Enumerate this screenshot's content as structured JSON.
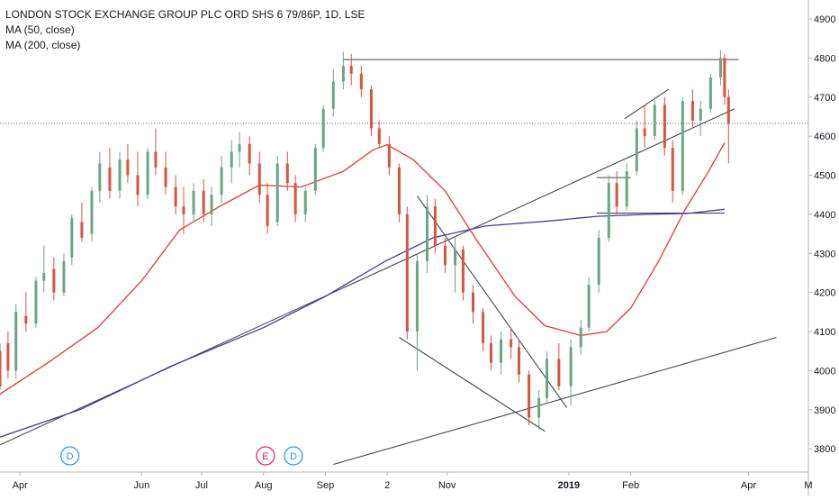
{
  "legend": {
    "title": "LONDON STOCK EXCHANGE GROUP PLC ORD SHS 6 79/86P, 1D, LSE",
    "ma50": "MA (50, close)",
    "ma200": "MA (200, close)"
  },
  "chart_data": {
    "type": "candlestick",
    "y_ticks": [
      3800,
      3900,
      4000,
      4100,
      4200,
      4300,
      4400,
      4500,
      4600,
      4700,
      4800,
      4900
    ],
    "x_ticks": [
      "Apr",
      "Jun",
      "Jul",
      "Aug",
      "Sep",
      "2",
      "Nov",
      "2019",
      "Feb",
      "Apr",
      "M"
    ],
    "x_range": [
      "2018-03-22",
      "2019-05-01"
    ],
    "y_range": [
      3745,
      4930
    ],
    "last_price": 4633,
    "colors": {
      "up": "#6ba583",
      "down": "#d75442",
      "ma50": "#e53935",
      "ma200": "#3f3fa0",
      "trend": "#434651"
    },
    "event_markers": [
      {
        "label": "D",
        "date": "2018-04-26",
        "color": "#2196f3"
      },
      {
        "label": "E",
        "date": "2018-08-02",
        "color": "#e91e63"
      },
      {
        "label": "D",
        "date": "2018-08-16",
        "color": "#2196f3"
      }
    ],
    "ma50_series": [
      [
        "2018-03-22",
        3940
      ],
      [
        "2018-04-15",
        4020
      ],
      [
        "2018-05-10",
        4110
      ],
      [
        "2018-06-01",
        4230
      ],
      [
        "2018-06-20",
        4360
      ],
      [
        "2018-07-10",
        4420
      ],
      [
        "2018-07-30",
        4475
      ],
      [
        "2018-08-20",
        4470
      ],
      [
        "2018-09-10",
        4510
      ],
      [
        "2018-09-25",
        4565
      ],
      [
        "2018-10-02",
        4578
      ],
      [
        "2018-10-15",
        4540
      ],
      [
        "2018-10-31",
        4460
      ],
      [
        "2018-11-15",
        4340
      ],
      [
        "2018-12-05",
        4190
      ],
      [
        "2018-12-20",
        4115
      ],
      [
        "2019-01-07",
        4090
      ],
      [
        "2019-01-20",
        4100
      ],
      [
        "2019-02-01",
        4160
      ],
      [
        "2019-02-15",
        4280
      ],
      [
        "2019-02-28",
        4410
      ],
      [
        "2019-03-12",
        4510
      ],
      [
        "2019-03-20",
        4583
      ]
    ],
    "ma200_series": [
      [
        "2018-03-22",
        3830
      ],
      [
        "2018-05-01",
        3900
      ],
      [
        "2018-06-15",
        4010
      ],
      [
        "2018-08-01",
        4110
      ],
      [
        "2018-09-01",
        4190
      ],
      [
        "2018-10-01",
        4280
      ],
      [
        "2018-10-25",
        4340
      ],
      [
        "2018-11-20",
        4370
      ],
      [
        "2018-12-20",
        4382
      ],
      [
        "2019-01-15",
        4395
      ],
      [
        "2019-02-10",
        4400
      ],
      [
        "2019-03-01",
        4402
      ],
      [
        "2019-03-20",
        4413
      ]
    ],
    "trend_lines": [
      {
        "name": "lower-support",
        "from": [
          "2018-09-05",
          3760
        ],
        "to": [
          "2019-04-15",
          4085
        ]
      },
      {
        "name": "rising-long",
        "from": [
          "2018-03-22",
          3810
        ],
        "to": [
          "2019-03-25",
          4670
        ]
      },
      {
        "name": "resistance-top",
        "from": [
          "2018-09-10",
          4796
        ],
        "to": [
          "2019-03-27",
          4796
        ]
      },
      {
        "name": "wedge-upper",
        "from": [
          "2018-10-17",
          4447
        ],
        "to": [
          "2018-12-31",
          3905
        ]
      },
      {
        "name": "wedge-lower",
        "from": [
          "2018-10-08",
          4085
        ],
        "to": [
          "2018-12-20",
          3845
        ]
      },
      {
        "name": "support-4400",
        "from": [
          "2019-01-15",
          4403
        ],
        "to": [
          "2019-03-20",
          4403
        ]
      },
      {
        "name": "box-4495",
        "from": [
          "2019-01-15",
          4494
        ],
        "to": [
          "2019-02-01",
          4494
        ]
      },
      {
        "name": "channel-upper",
        "from": [
          "2019-01-29",
          4645
        ],
        "to": [
          "2019-02-20",
          4720
        ]
      }
    ],
    "candles": [
      [
        "2018-03-22",
        4050,
        4070,
        3950,
        3960
      ],
      [
        "2018-03-26",
        4070,
        4100,
        3980,
        4000
      ],
      [
        "2018-03-30",
        4000,
        4170,
        3980,
        4150
      ],
      [
        "2018-04-04",
        4140,
        4200,
        4100,
        4120
      ],
      [
        "2018-04-09",
        4120,
        4240,
        4110,
        4230
      ],
      [
        "2018-04-13",
        4230,
        4320,
        4200,
        4250
      ],
      [
        "2018-04-18",
        4260,
        4290,
        4180,
        4200
      ],
      [
        "2018-04-23",
        4200,
        4300,
        4190,
        4280
      ],
      [
        "2018-04-27",
        4290,
        4400,
        4270,
        4390
      ],
      [
        "2018-05-02",
        4380,
        4430,
        4330,
        4340
      ],
      [
        "2018-05-07",
        4350,
        4470,
        4330,
        4460
      ],
      [
        "2018-05-11",
        4460,
        4560,
        4430,
        4530
      ],
      [
        "2018-05-16",
        4520,
        4570,
        4440,
        4460
      ],
      [
        "2018-05-21",
        4460,
        4560,
        4440,
        4540
      ],
      [
        "2018-05-25",
        4540,
        4580,
        4480,
        4500
      ],
      [
        "2018-05-30",
        4500,
        4560,
        4420,
        4450
      ],
      [
        "2018-06-04",
        4450,
        4570,
        4440,
        4560
      ],
      [
        "2018-06-08",
        4560,
        4620,
        4500,
        4520
      ],
      [
        "2018-06-13",
        4520,
        4560,
        4450,
        4470
      ],
      [
        "2018-06-18",
        4470,
        4500,
        4400,
        4420
      ],
      [
        "2018-06-22",
        4420,
        4470,
        4350,
        4400
      ],
      [
        "2018-06-27",
        4400,
        4480,
        4380,
        4460
      ],
      [
        "2018-07-02",
        4460,
        4490,
        4380,
        4400
      ],
      [
        "2018-07-06",
        4400,
        4470,
        4370,
        4450
      ],
      [
        "2018-07-11",
        4450,
        4550,
        4430,
        4520
      ],
      [
        "2018-07-16",
        4520,
        4590,
        4480,
        4560
      ],
      [
        "2018-07-20",
        4560,
        4610,
        4520,
        4580
      ],
      [
        "2018-07-25",
        4580,
        4600,
        4500,
        4530
      ],
      [
        "2018-07-30",
        4530,
        4560,
        4430,
        4450
      ],
      [
        "2018-08-03",
        4450,
        4480,
        4350,
        4370
      ],
      [
        "2018-08-08",
        4380,
        4550,
        4370,
        4530
      ],
      [
        "2018-08-13",
        4530,
        4560,
        4460,
        4480
      ],
      [
        "2018-08-17",
        4480,
        4500,
        4380,
        4400
      ],
      [
        "2018-08-22",
        4400,
        4470,
        4380,
        4460
      ],
      [
        "2018-08-27",
        4460,
        4580,
        4450,
        4570
      ],
      [
        "2018-08-31",
        4570,
        4680,
        4560,
        4670
      ],
      [
        "2018-09-05",
        4670,
        4770,
        4650,
        4740
      ],
      [
        "2018-09-10",
        4740,
        4815,
        4720,
        4780
      ],
      [
        "2018-09-14",
        4780,
        4810,
        4730,
        4760
      ],
      [
        "2018-09-19",
        4760,
        4780,
        4700,
        4720
      ],
      [
        "2018-09-24",
        4720,
        4730,
        4600,
        4620
      ],
      [
        "2018-09-28",
        4620,
        4640,
        4570,
        4580
      ],
      [
        "2018-10-03",
        4580,
        4600,
        4500,
        4520
      ],
      [
        "2018-10-08",
        4520,
        4530,
        4380,
        4400
      ],
      [
        "2018-10-12",
        4400,
        4420,
        4080,
        4100
      ],
      [
        "2018-10-17",
        4100,
        4300,
        4000,
        4280
      ],
      [
        "2018-10-22",
        4280,
        4450,
        4250,
        4420
      ],
      [
        "2018-10-26",
        4420,
        4440,
        4300,
        4320
      ],
      [
        "2018-10-31",
        4320,
        4340,
        4250,
        4270
      ],
      [
        "2018-11-05",
        4270,
        4340,
        4200,
        4310
      ],
      [
        "2018-11-09",
        4310,
        4320,
        4180,
        4200
      ],
      [
        "2018-11-14",
        4200,
        4220,
        4120,
        4150
      ],
      [
        "2018-11-19",
        4150,
        4160,
        4050,
        4070
      ],
      [
        "2018-11-23",
        4070,
        4090,
        4000,
        4020
      ],
      [
        "2018-11-28",
        4020,
        4100,
        3990,
        4080
      ],
      [
        "2018-12-03",
        4080,
        4110,
        4030,
        4060
      ],
      [
        "2018-12-07",
        4060,
        4080,
        3970,
        3990
      ],
      [
        "2018-12-12",
        3990,
        4000,
        3860,
        3880
      ],
      [
        "2018-12-17",
        3880,
        3950,
        3850,
        3930
      ],
      [
        "2018-12-21",
        3930,
        4050,
        3920,
        4030
      ],
      [
        "2018-12-27",
        4030,
        4070,
        3950,
        3960
      ],
      [
        "2019-01-02",
        3960,
        4080,
        3910,
        4060
      ],
      [
        "2019-01-07",
        4060,
        4130,
        4040,
        4110
      ],
      [
        "2019-01-11",
        4110,
        4240,
        4100,
        4220
      ],
      [
        "2019-01-16",
        4220,
        4360,
        4200,
        4340
      ],
      [
        "2019-01-21",
        4340,
        4500,
        4330,
        4480
      ],
      [
        "2019-01-25",
        4480,
        4510,
        4400,
        4420
      ],
      [
        "2019-01-30",
        4420,
        4530,
        4410,
        4510
      ],
      [
        "2019-02-04",
        4510,
        4640,
        4500,
        4620
      ],
      [
        "2019-02-08",
        4620,
        4680,
        4570,
        4600
      ],
      [
        "2019-02-13",
        4600,
        4700,
        4590,
        4680
      ],
      [
        "2019-02-18",
        4680,
        4700,
        4550,
        4570
      ],
      [
        "2019-02-22",
        4570,
        4590,
        4430,
        4460
      ],
      [
        "2019-02-27",
        4460,
        4700,
        4450,
        4690
      ],
      [
        "2019-03-04",
        4690,
        4720,
        4620,
        4640
      ],
      [
        "2019-03-08",
        4640,
        4690,
        4600,
        4670
      ],
      [
        "2019-03-13",
        4670,
        4760,
        4660,
        4750
      ],
      [
        "2019-03-18",
        4750,
        4820,
        4730,
        4800
      ],
      [
        "2019-03-20",
        4800,
        4810,
        4680,
        4700
      ],
      [
        "2019-03-22",
        4700,
        4720,
        4530,
        4633
      ]
    ]
  }
}
